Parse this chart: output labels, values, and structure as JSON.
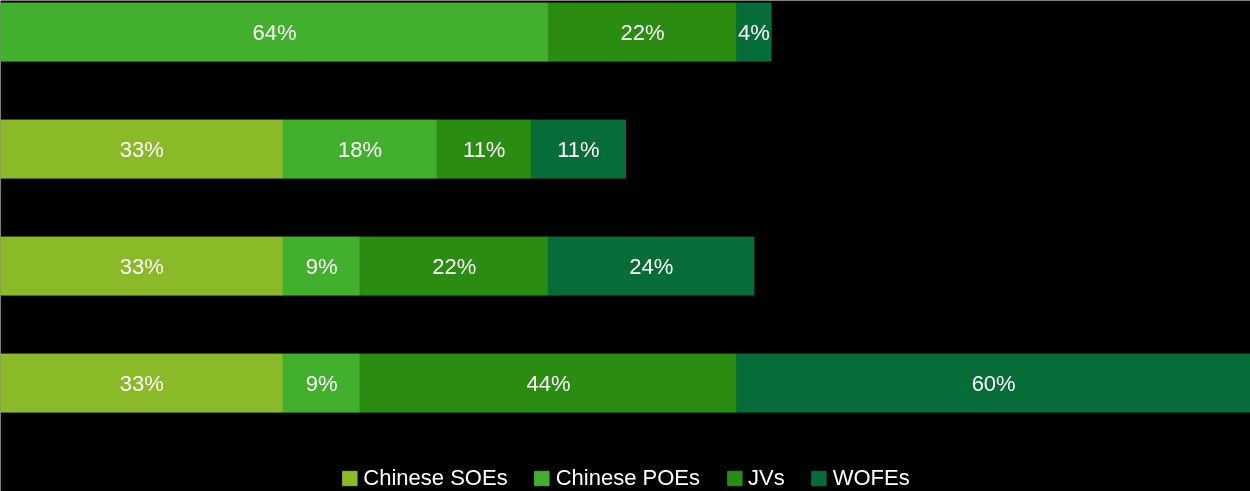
{
  "chart_data": {
    "type": "bar",
    "orientation": "horizontal",
    "stacked": true,
    "legend": "bottom",
    "categories": [
      null,
      null,
      null,
      null
    ],
    "series": [
      {
        "name": "Chinese SOEs",
        "color": "#8aba28",
        "values": [
          null,
          33,
          33,
          33
        ],
        "value_labels": [
          null,
          "33%",
          "33%",
          "33%"
        ]
      },
      {
        "name": "Chinese POEs",
        "color": "#42b02c",
        "values": [
          64,
          18,
          9,
          9
        ],
        "value_labels": [
          "64%",
          "18%",
          "9%",
          "9%"
        ]
      },
      {
        "name": "JVs",
        "color": "#2a8c10",
        "values": [
          22,
          11,
          22,
          44
        ],
        "value_labels": [
          "22%",
          "11%",
          "22%",
          "44%"
        ]
      },
      {
        "name": "WOFEs",
        "color": "#066d38",
        "values": [
          4,
          11,
          24,
          60
        ],
        "value_labels": [
          "4%",
          "11%",
          "24%",
          "60%"
        ]
      }
    ]
  }
}
